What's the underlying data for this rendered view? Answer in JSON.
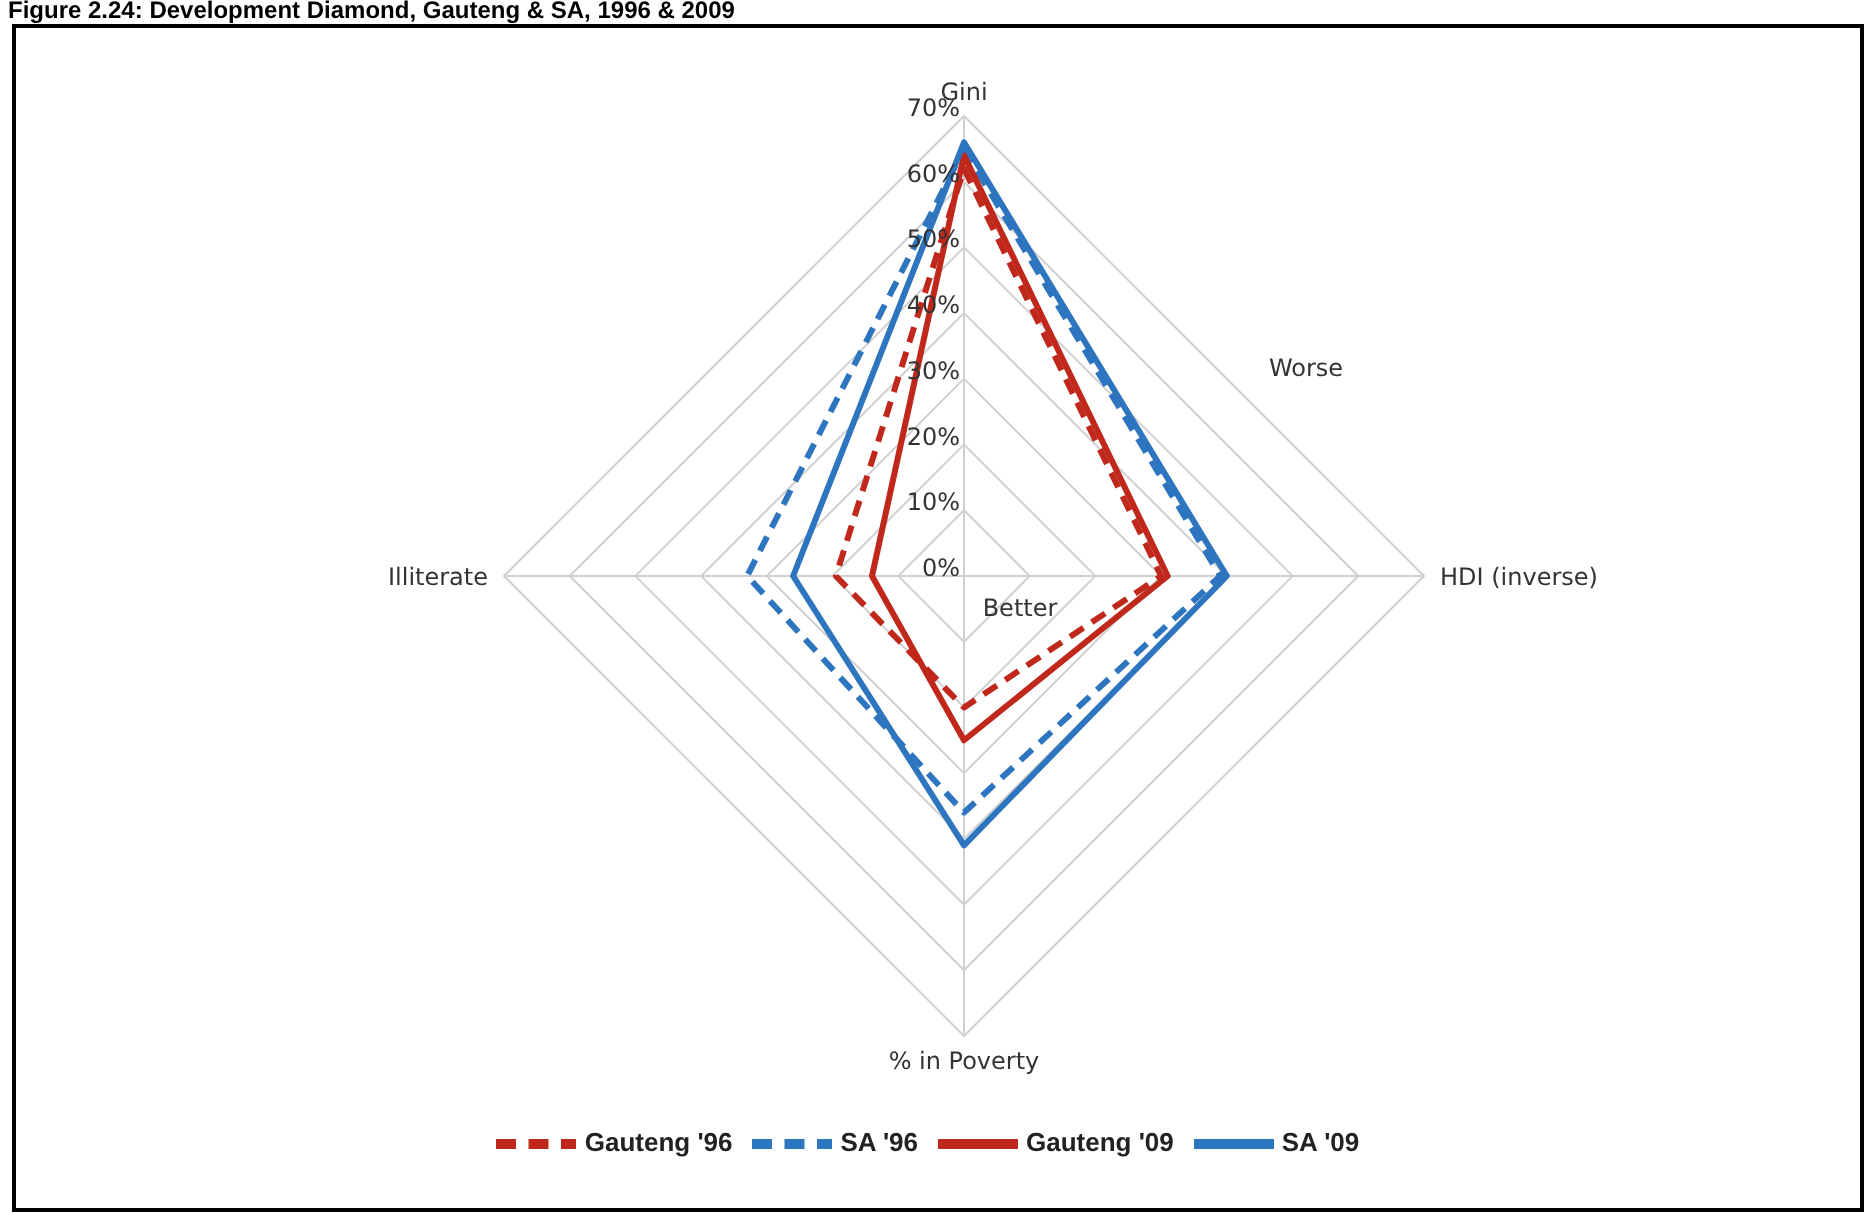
{
  "chart_data": {
    "type": "radar",
    "title": "Figure 2.24: Development Diamond, Gauteng & SA, 1996 & 2009",
    "categories": [
      "Gini",
      "HDI (inverse)",
      "% in Poverty",
      "Illiterate"
    ],
    "series": [
      {
        "name": "Gauteng '96",
        "color": "#c0281c",
        "line_style": "dashed",
        "values": [
          62,
          30,
          20,
          19.5
        ]
      },
      {
        "name": "SA '96",
        "color": "#2e75c0",
        "line_style": "dashed",
        "values": [
          65,
          39,
          36,
          33
        ]
      },
      {
        "name": "Gauteng '09",
        "color": "#c0281c",
        "line_style": "solid",
        "values": [
          64,
          31,
          25,
          14
        ]
      },
      {
        "name": "SA '09",
        "color": "#2e75c0",
        "line_style": "solid",
        "values": [
          66,
          40,
          41,
          26
        ]
      }
    ],
    "ylim": [
      0,
      70
    ],
    "yticks": [
      {
        "value": 0,
        "label": "0%"
      },
      {
        "value": 10,
        "label": "10%"
      },
      {
        "value": 20,
        "label": "20%"
      },
      {
        "value": 30,
        "label": "30%"
      },
      {
        "value": 40,
        "label": "40%"
      },
      {
        "value": 50,
        "label": "50%"
      },
      {
        "value": 60,
        "label": "60%"
      },
      {
        "value": 70,
        "label": "70%"
      }
    ],
    "annotations": [
      "Worse",
      "Better"
    ],
    "grid": true,
    "legend": "bottom",
    "marker": "none"
  }
}
